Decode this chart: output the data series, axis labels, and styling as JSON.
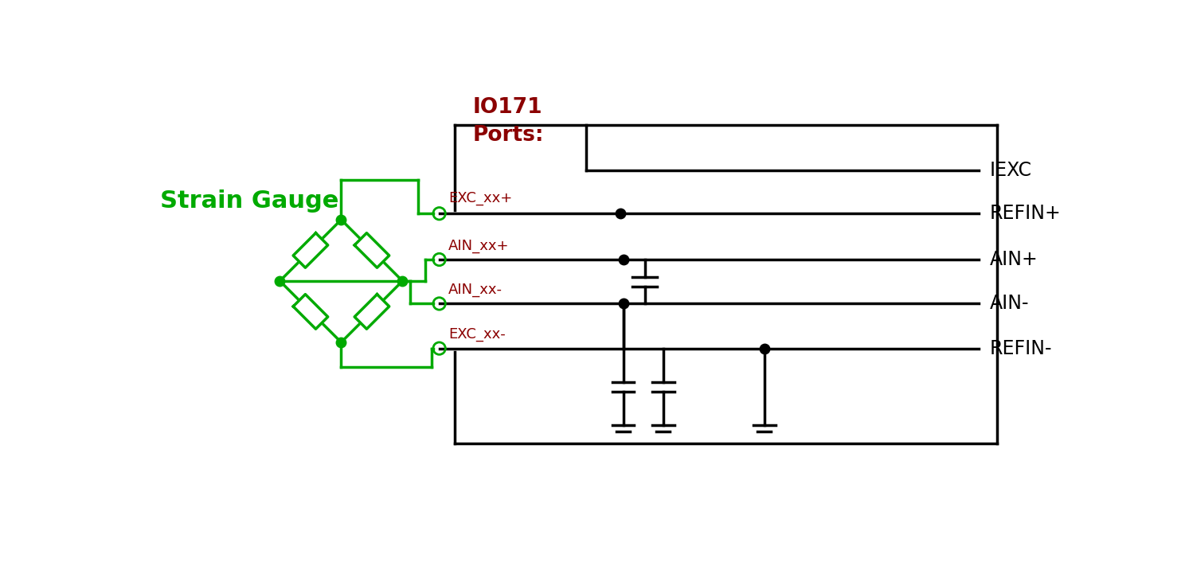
{
  "bg_color": "#ffffff",
  "green_color": "#00aa00",
  "dark_red_color": "#8b0000",
  "black_color": "#000000",
  "strain_gauge_label": "Strain Gauge",
  "io171_line1": "IO171",
  "io171_line2": "Ports:",
  "port_labels": [
    "EXC_xx+",
    "AIN_xx+",
    "AIN_xx-",
    "EXC_xx-"
  ],
  "right_labels": [
    "IEXC",
    "REFIN+",
    "AIN+",
    "AIN-",
    "REFIN-"
  ],
  "lw_green": 2.5,
  "lw_black": 2.5
}
